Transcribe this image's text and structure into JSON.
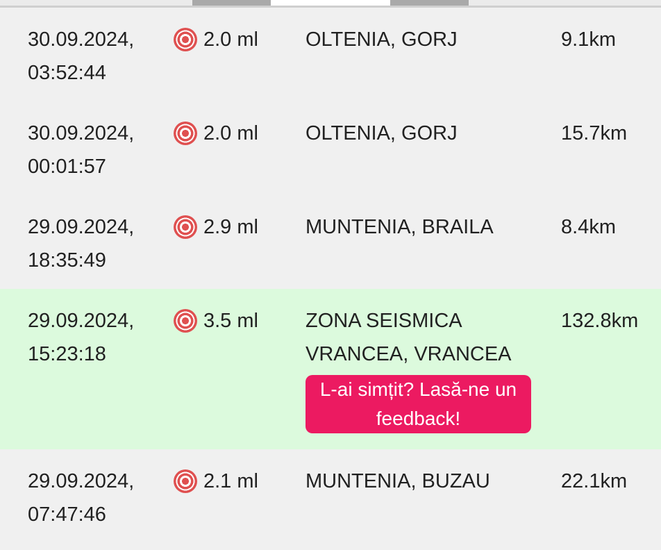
{
  "topbar": {
    "fragment_note": "clipped-tab-strip",
    "colors": {
      "segment_gray": "#a9a9a9",
      "segment_white": "#ffffff",
      "divider": "#cfcfcf"
    }
  },
  "colors": {
    "background": "#f0f0f0",
    "highlight_green": "#dcfadd",
    "accent_pink": "#ec1a61",
    "icon_red": "#df5050",
    "text": "#212121"
  },
  "feedback_button": {
    "label": "L-ai simțit? Lasă-ne un feedback!"
  },
  "rows": [
    {
      "date": "30.09.2024,",
      "time": "03:52:44",
      "magnitude": "2.0 ml",
      "location": "OLTENIA, GORJ",
      "depth": "9.1km",
      "highlighted": false
    },
    {
      "date": "30.09.2024,",
      "time": "00:01:57",
      "magnitude": "2.0 ml",
      "location": "OLTENIA, GORJ",
      "depth": "15.7km",
      "highlighted": false
    },
    {
      "date": "29.09.2024,",
      "time": "18:35:49",
      "magnitude": "2.9 ml",
      "location": "MUNTENIA, BRAILA",
      "depth": "8.4km",
      "highlighted": false
    },
    {
      "date": "29.09.2024,",
      "time": "15:23:18",
      "magnitude": "3.5 ml",
      "location": "ZONA SEISMICA VRANCEA, VRANCEA",
      "depth": "132.8km",
      "highlighted": true
    },
    {
      "date": "29.09.2024,",
      "time": "07:47:46",
      "magnitude": "2.1 ml",
      "location": "MUNTENIA, BUZAU",
      "depth": "22.1km",
      "highlighted": false
    }
  ]
}
